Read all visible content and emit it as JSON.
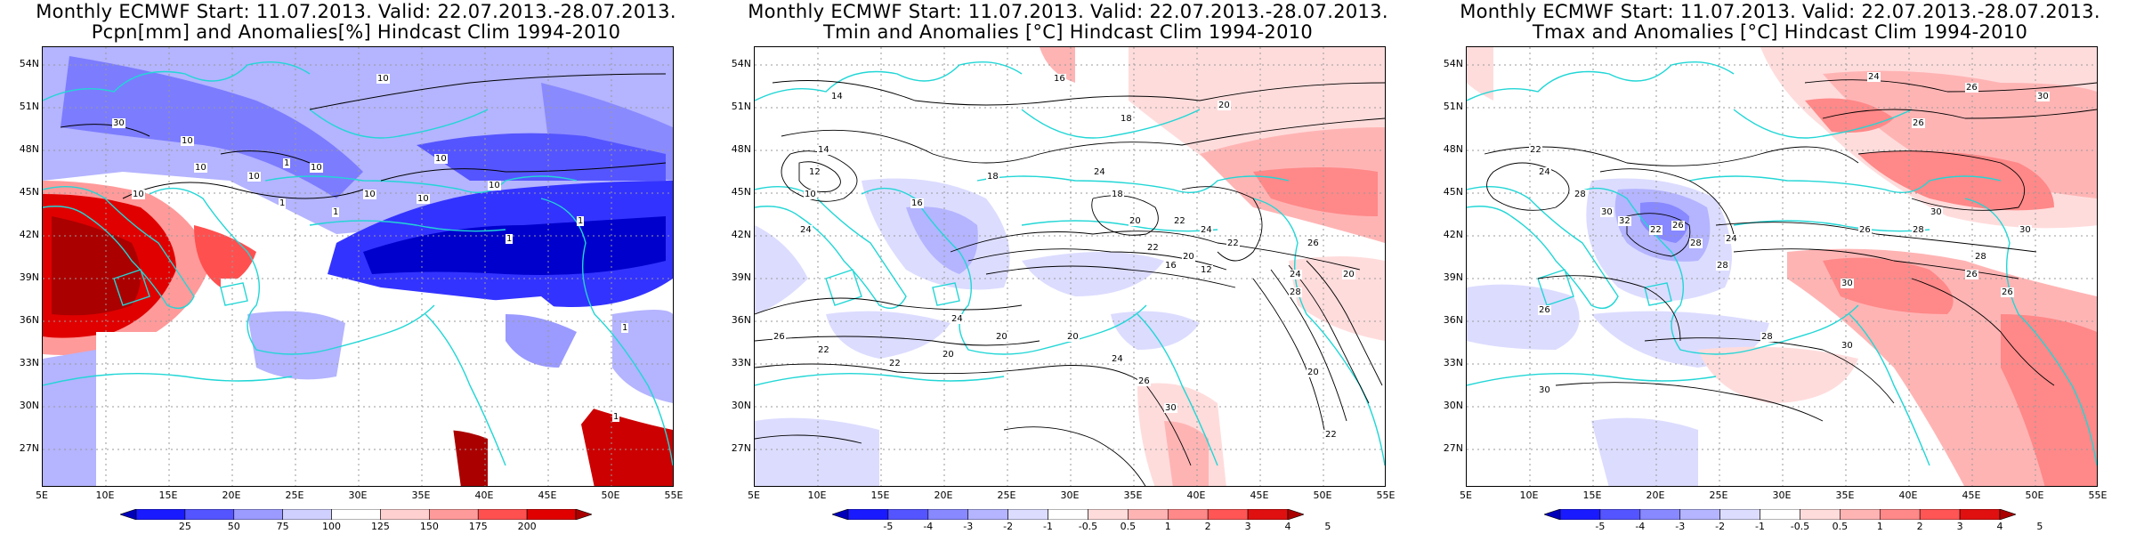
{
  "panels": [
    {
      "title_line1": "Monthly ECMWF Start: 11.07.2013. Valid: 22.07.2013.-28.07.2013.",
      "title_line2": "Pcpn[mm] and Anomalies[%] Hindcast Clim 1994-2010",
      "colorbar": {
        "labels": [
          "25",
          "50",
          "75",
          "100",
          "125",
          "150",
          "175",
          "200"
        ],
        "colors": [
          "#0000bb",
          "#1a1aff",
          "#5555ff",
          "#9a9aff",
          "#d0d0ff",
          "#ffffff",
          "#ffd0d0",
          "#ff9a9a",
          "#ff5050",
          "#e00000",
          "#aa0000"
        ]
      },
      "contour_labels": [
        "10",
        "10",
        "10",
        "30",
        "10",
        "10",
        "10",
        "1",
        "1",
        "1",
        "10",
        "10",
        "10",
        "10",
        "1",
        "1",
        "1",
        "1"
      ]
    },
    {
      "title_line1": "Monthly ECMWF Start: 11.07.2013. Valid: 22.07.2013.-28.07.2013.",
      "title_line2": "Tmin and Anomalies [°C] Hindcast Clim 1994-2010",
      "colorbar": {
        "labels": [
          "-5",
          "-4",
          "-3",
          "-2",
          "-1",
          "-0.5",
          "0.5",
          "1",
          "2",
          "3",
          "4",
          "5"
        ],
        "colors": [
          "#0000bb",
          "#1a1aff",
          "#5555ff",
          "#8888ff",
          "#b4b4ff",
          "#dcdcff",
          "#ffffff",
          "#ffdcdc",
          "#ffb4b4",
          "#ff8888",
          "#ff5555",
          "#e01010",
          "#aa0000"
        ]
      },
      "contour_labels": [
        "16",
        "14",
        "18",
        "20",
        "14",
        "12",
        "10",
        "16",
        "18",
        "24",
        "18",
        "20",
        "22",
        "22",
        "24",
        "20",
        "16",
        "12",
        "22",
        "24",
        "26",
        "28",
        "20",
        "24",
        "26",
        "22",
        "22",
        "20",
        "24",
        "20",
        "20",
        "24",
        "26",
        "30",
        "22",
        "20"
      ]
    },
    {
      "title_line1": "Monthly ECMWF Start: 11.07.2013. Valid: 22.07.2013.-28.07.2013.",
      "title_line2": "Tmax and Anomalies [°C] Hindcast Clim 1994-2010",
      "colorbar": {
        "labels": [
          "-5",
          "-4",
          "-3",
          "-2",
          "-1",
          "-0.5",
          "0.5",
          "1",
          "2",
          "3",
          "4",
          "5"
        ],
        "colors": [
          "#0000bb",
          "#1a1aff",
          "#5555ff",
          "#8888ff",
          "#b4b4ff",
          "#dcdcff",
          "#ffffff",
          "#ffdcdc",
          "#ffb4b4",
          "#ff8888",
          "#ff5555",
          "#e01010",
          "#aa0000"
        ]
      },
      "contour_labels": [
        "24",
        "26",
        "30",
        "26",
        "22",
        "24",
        "28",
        "30",
        "32",
        "22",
        "26",
        "28",
        "24",
        "28",
        "26",
        "28",
        "30",
        "26",
        "28",
        "26",
        "30",
        "30",
        "28",
        "30",
        "26",
        "30"
      ]
    }
  ],
  "axes": {
    "lat_labels": [
      "54N",
      "51N",
      "48N",
      "45N",
      "42N",
      "39N",
      "36N",
      "33N",
      "30N",
      "27N"
    ],
    "lon_labels": [
      "5E",
      "10E",
      "15E",
      "20E",
      "25E",
      "30E",
      "35E",
      "40E",
      "45E",
      "50E",
      "55E"
    ]
  },
  "colors": {
    "coast": "#22d6d6",
    "contour": "#000000",
    "grid": "#9a9a9a"
  }
}
